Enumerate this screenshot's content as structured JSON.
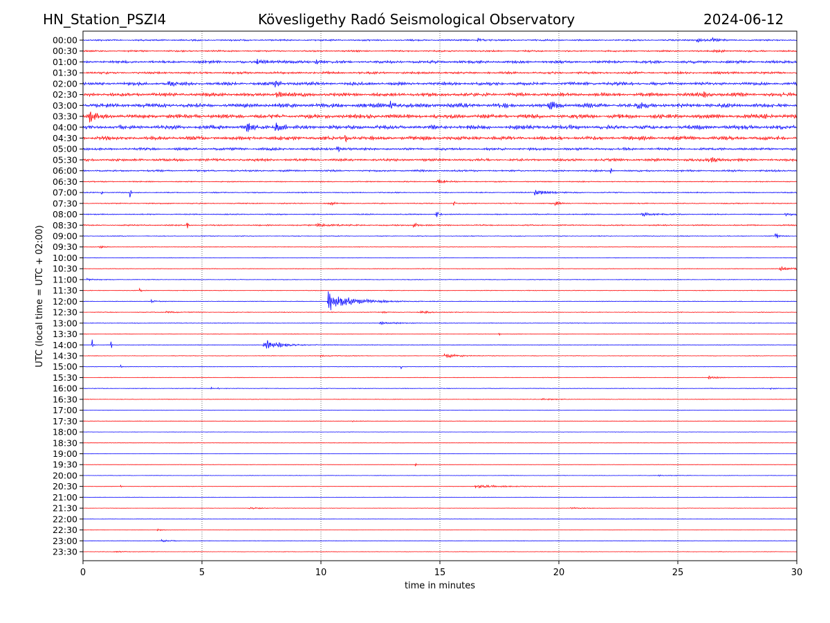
{
  "header": {
    "station": "HN_Station_PSZI4",
    "observatory": "Kövesligethy Radó Seismological Observatory",
    "date": "2024-06-12"
  },
  "chart_data": {
    "type": "line",
    "title": "Kövesligethy Radó Seismological Observatory",
    "xlabel": "time in minutes",
    "ylabel": "UTC (local time = UTC + 02:00)",
    "xlim": [
      0,
      30
    ],
    "xticks": [
      "0",
      "5",
      "10",
      "15",
      "20",
      "25",
      "30"
    ],
    "grid": "vertical dotted at every 5 minutes",
    "colors": [
      "#0000ff",
      "#ff0000"
    ],
    "series": [
      {
        "name": "00:00",
        "noise": 0.18,
        "events": [
          [
            16.6,
            0.5,
            0.3
          ],
          [
            25.8,
            0.6,
            0.4
          ],
          [
            26.4,
            0.5,
            0.3
          ]
        ]
      },
      {
        "name": "00:30",
        "noise": 0.18,
        "events": [
          [
            26.5,
            0.4,
            0.6
          ]
        ]
      },
      {
        "name": "01:00",
        "noise": 0.3,
        "events": [
          [
            7.3,
            0.5,
            1
          ],
          [
            9.8,
            0.6,
            0.3
          ]
        ]
      },
      {
        "name": "01:30",
        "noise": 0.25,
        "events": []
      },
      {
        "name": "02:00",
        "noise": 0.35,
        "events": [
          [
            3.6,
            0.5,
            0.5
          ],
          [
            8.1,
            0.5,
            0.5
          ]
        ]
      },
      {
        "name": "02:30",
        "noise": 0.4,
        "events": [
          [
            8.1,
            1.0,
            0.4
          ],
          [
            26,
            1.0,
            0.3
          ]
        ]
      },
      {
        "name": "03:00",
        "noise": 0.45,
        "events": [
          [
            12.9,
            1.0,
            0.4
          ],
          [
            19.6,
            1.0,
            0.3
          ],
          [
            23.3,
            1.0,
            0.4
          ]
        ]
      },
      {
        "name": "03:30",
        "noise": 0.45,
        "events": [
          [
            0.2,
            1.6,
            0.5
          ],
          [
            28.6,
            0.8,
            0.3
          ]
        ]
      },
      {
        "name": "04:00",
        "noise": 0.45,
        "events": [
          [
            8.1,
            1.3,
            0.4
          ],
          [
            6.9,
            0.8,
            0.3
          ]
        ]
      },
      {
        "name": "04:30",
        "noise": 0.4,
        "events": [
          [
            11,
            0.8,
            0.4
          ]
        ]
      },
      {
        "name": "05:00",
        "noise": 0.28,
        "events": [
          [
            10.7,
            0.8,
            0.3
          ]
        ]
      },
      {
        "name": "05:30",
        "noise": 0.28,
        "events": [
          [
            26.3,
            0.7,
            0.6
          ]
        ]
      },
      {
        "name": "06:00",
        "noise": 0.2,
        "events": [
          [
            22.2,
            0.6,
            0.05
          ]
        ]
      },
      {
        "name": "06:30",
        "noise": 0.12,
        "events": [
          [
            14.9,
            0.5,
            0.6
          ]
        ]
      },
      {
        "name": "07:00",
        "noise": 0.12,
        "events": [
          [
            0.8,
            0.6,
            0.05
          ],
          [
            2.0,
            0.6,
            0.05
          ],
          [
            19.0,
            0.6,
            1.0
          ]
        ]
      },
      {
        "name": "07:30",
        "noise": 0.12,
        "events": [
          [
            10.3,
            0.5,
            0.4
          ],
          [
            15.6,
            0.5,
            0.1
          ],
          [
            19.8,
            0.4,
            0.4
          ]
        ]
      },
      {
        "name": "08:00",
        "noise": 0.12,
        "events": [
          [
            14.8,
            2.0,
            0.15
          ],
          [
            23.5,
            0.4,
            0.8
          ],
          [
            29.5,
            0.4,
            0.6
          ]
        ]
      },
      {
        "name": "08:30",
        "noise": 0.14,
        "events": [
          [
            4.4,
            0.5,
            0.05
          ],
          [
            9.8,
            0.5,
            1.0
          ],
          [
            13.9,
            0.5,
            0.4
          ]
        ]
      },
      {
        "name": "09:00",
        "noise": 0.08,
        "events": [
          [
            29.1,
            1.0,
            0.2
          ]
        ]
      },
      {
        "name": "09:30",
        "noise": 0.07,
        "events": [
          [
            0.7,
            1.0,
            0.15
          ]
        ]
      },
      {
        "name": "10:00",
        "noise": 0.06,
        "events": []
      },
      {
        "name": "10:30",
        "noise": 0.07,
        "events": [
          [
            29.3,
            0.5,
            1.0
          ]
        ]
      },
      {
        "name": "11:00",
        "noise": 0.08,
        "events": [
          [
            0.2,
            0.3,
            0.4
          ]
        ]
      },
      {
        "name": "11:30",
        "noise": 0.07,
        "events": [
          [
            2.4,
            0.4,
            0.2
          ]
        ]
      },
      {
        "name": "12:00",
        "noise": 0.07,
        "events": [
          [
            10.3,
            2.3,
            1.6
          ],
          [
            2.9,
            0.3,
            0.4
          ]
        ]
      },
      {
        "name": "12:30",
        "noise": 0.08,
        "events": [
          [
            3.5,
            0.3,
            0.6
          ],
          [
            12.6,
            0.4,
            0.3
          ],
          [
            14.2,
            0.3,
            0.8
          ]
        ]
      },
      {
        "name": "13:00",
        "noise": 0.07,
        "events": [
          [
            12.5,
            0.3,
            1.2
          ]
        ]
      },
      {
        "name": "13:30",
        "noise": 0.06,
        "events": [
          [
            17.5,
            0.4,
            0.05
          ]
        ]
      },
      {
        "name": "14:00",
        "noise": 0.07,
        "events": [
          [
            0.4,
            1.0,
            0.05
          ],
          [
            1.2,
            0.8,
            0.05
          ],
          [
            7.6,
            1.3,
            1.2
          ]
        ]
      },
      {
        "name": "14:30",
        "noise": 0.06,
        "events": [
          [
            15.2,
            0.7,
            0.8
          ],
          [
            10,
            0.2,
            1.0
          ]
        ]
      },
      {
        "name": "15:00",
        "noise": 0.06,
        "events": [
          [
            13.4,
            0.5,
            0.05
          ],
          [
            1.6,
            0.4,
            0.05
          ]
        ]
      },
      {
        "name": "15:30",
        "noise": 0.06,
        "events": [
          [
            26.3,
            0.4,
            0.5
          ]
        ]
      },
      {
        "name": "16:00",
        "noise": 0.07,
        "events": [
          [
            5.4,
            0.6,
            0.05
          ],
          [
            5.7,
            0.5,
            0.05
          ],
          [
            28.9,
            0.3,
            0.4
          ]
        ]
      },
      {
        "name": "16:30",
        "noise": 0.06,
        "events": [
          [
            19.3,
            0.3,
            0.6
          ]
        ]
      },
      {
        "name": "17:00",
        "noise": 0.05,
        "events": []
      },
      {
        "name": "17:30",
        "noise": 0.05,
        "events": [
          [
            11.3,
            0.2,
            0.3
          ]
        ]
      },
      {
        "name": "18:00",
        "noise": 0.04,
        "events": []
      },
      {
        "name": "18:30",
        "noise": 0.04,
        "events": []
      },
      {
        "name": "19:00",
        "noise": 0.04,
        "events": []
      },
      {
        "name": "19:30",
        "noise": 0.04,
        "events": [
          [
            14.0,
            0.3,
            0.05
          ]
        ]
      },
      {
        "name": "20:00",
        "noise": 0.05,
        "events": [
          [
            24.2,
            0.2,
            0.8
          ]
        ]
      },
      {
        "name": "20:30",
        "noise": 0.05,
        "events": [
          [
            16.5,
            0.35,
            2.0
          ],
          [
            1.6,
            0.4,
            0.05
          ]
        ]
      },
      {
        "name": "21:00",
        "noise": 0.04,
        "events": []
      },
      {
        "name": "21:30",
        "noise": 0.04,
        "events": [
          [
            7.0,
            0.2,
            1.2
          ],
          [
            20.5,
            0.2,
            1.0
          ]
        ]
      },
      {
        "name": "22:00",
        "noise": 0.04,
        "events": []
      },
      {
        "name": "22:30",
        "noise": 0.04,
        "events": [
          [
            3.1,
            0.3,
            0.3
          ]
        ]
      },
      {
        "name": "23:00",
        "noise": 0.05,
        "events": [
          [
            3.3,
            0.3,
            0.6
          ]
        ]
      },
      {
        "name": "23:30",
        "noise": 0.05,
        "events": [
          [
            1.2,
            0.2,
            0.8
          ]
        ]
      }
    ]
  }
}
